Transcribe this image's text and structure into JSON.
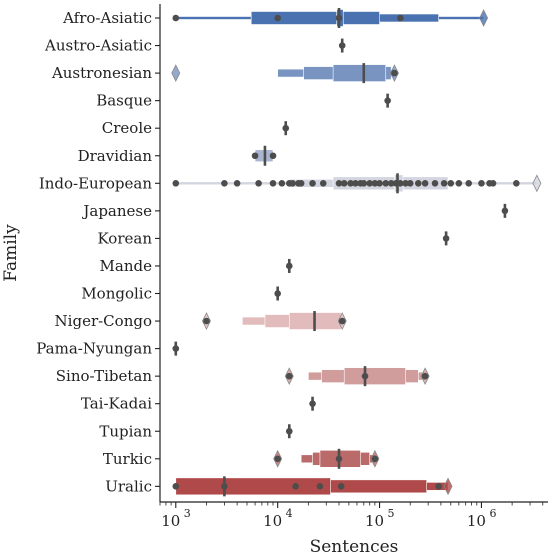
{
  "chart_data": {
    "type": "boxen",
    "xlabel": "Sentences",
    "ylabel": "Family",
    "x_scale": "log",
    "xlim": [
      700,
      4500000
    ],
    "x_ticks": [
      {
        "value": 1000,
        "label": "10^3",
        "base": "10",
        "exp": "3"
      },
      {
        "value": 10000,
        "label": "10^4",
        "base": "10",
        "exp": "4"
      },
      {
        "value": 100000,
        "label": "10^5",
        "base": "10",
        "exp": "5"
      },
      {
        "value": 1000000,
        "label": "10^6",
        "base": "10",
        "exp": "6"
      }
    ],
    "categories": [
      "Afro-Asiatic",
      "Austro-Asiatic",
      "Austronesian",
      "Basque",
      "Creole",
      "Dravidian",
      "Indo-European",
      "Japanese",
      "Korean",
      "Mande",
      "Mongolic",
      "Niger-Congo",
      "Pama-Nyungan",
      "Sino-Tibetan",
      "Tai-Kadai",
      "Tupian",
      "Turkic",
      "Uralic"
    ],
    "colors": {
      "Afro-Asiatic": "#4a72b0",
      "Austro-Asiatic": "#5879b0",
      "Austronesian": "#7a94c2",
      "Basque": "#8aa0c8",
      "Creole": "#9aaccd",
      "Dravidian": "#aab5d0",
      "Indo-European": "#d3d6e0",
      "Japanese": "#d9d9df",
      "Korean": "#dcdcdc",
      "Mande": "#dcd4d4",
      "Mongolic": "#dccaca",
      "Niger-Congo": "#e2bcbc",
      "Pama-Nyungan": "#dcb0b0",
      "Sino-Tibetan": "#d19c9c",
      "Tai-Kadai": "#c98c8c",
      "Tupian": "#c48282",
      "Turkic": "#bb6a6a",
      "Uralic": "#b04a4a",
      "point": "#4d4d4d",
      "axis": "#222222"
    },
    "series": [
      {
        "family": "Afro-Asiatic",
        "boxes": [
          [
            1000,
            1050000
          ],
          [
            5500,
            380000
          ],
          [
            5500,
            100000
          ],
          [
            38000,
            44000
          ]
        ],
        "median": 40000,
        "points": [
          1000,
          10000,
          40000,
          160000
        ],
        "outliers": [
          1050000
        ]
      },
      {
        "family": "Austro-Asiatic",
        "boxes": [],
        "median": 43000,
        "points": [
          43000
        ],
        "outliers": []
      },
      {
        "family": "Austronesian",
        "boxes": [
          [
            10000,
            140000
          ],
          [
            18000,
            130000
          ],
          [
            35000,
            115000
          ]
        ],
        "median": 70000,
        "points": [
          140000
        ],
        "outliers": [
          1000,
          140000
        ]
      },
      {
        "family": "Basque",
        "boxes": [],
        "median": 120000,
        "points": [
          120000
        ],
        "outliers": []
      },
      {
        "family": "Creole",
        "boxes": [],
        "median": 12000,
        "points": [
          12000
        ],
        "outliers": []
      },
      {
        "family": "Dravidian",
        "boxes": [
          [
            6000,
            9000
          ]
        ],
        "median": 7500,
        "points": [
          6000,
          9000
        ],
        "outliers": []
      },
      {
        "family": "Indo-European",
        "boxes": [
          [
            1000,
            3500000
          ],
          [
            13000,
            470000
          ],
          [
            35000,
            470000
          ],
          [
            140000,
            170000
          ]
        ],
        "median": 150000,
        "points": [
          1000,
          3000,
          4000,
          6500,
          9000,
          11000,
          13000,
          14000,
          16000,
          17000,
          22000,
          28000,
          40000,
          45000,
          52000,
          58000,
          65000,
          70000,
          80000,
          90000,
          100000,
          115000,
          130000,
          145000,
          160000,
          180000,
          200000,
          240000,
          280000,
          350000,
          430000,
          500000,
          600000,
          750000,
          1000000,
          1200000,
          1300000,
          2200000
        ],
        "outliers": [
          3500000
        ]
      },
      {
        "family": "Japanese",
        "boxes": [],
        "median": 1700000,
        "points": [
          1700000
        ],
        "outliers": []
      },
      {
        "family": "Korean",
        "boxes": [],
        "median": 450000,
        "points": [
          450000
        ],
        "outliers": []
      },
      {
        "family": "Mande",
        "boxes": [],
        "median": 13000,
        "points": [
          13000
        ],
        "outliers": []
      },
      {
        "family": "Mongolic",
        "boxes": [],
        "median": 10000,
        "points": [
          10000
        ],
        "outliers": []
      },
      {
        "family": "Niger-Congo",
        "boxes": [
          [
            4500,
            45000
          ],
          [
            7500,
            42000
          ],
          [
            13000,
            42000
          ]
        ],
        "median": 23000,
        "points": [
          2000,
          43000
        ],
        "outliers": [
          2000,
          43000
        ]
      },
      {
        "family": "Pama-Nyungan",
        "boxes": [],
        "median": 1000,
        "points": [
          1000
        ],
        "outliers": []
      },
      {
        "family": "Sino-Tibetan",
        "boxes": [
          [
            20000,
            280000
          ],
          [
            27000,
            240000
          ],
          [
            45000,
            180000
          ]
        ],
        "median": 72000,
        "points": [
          13000,
          72000,
          280000
        ],
        "outliers": [
          13000,
          280000
        ]
      },
      {
        "family": "Tai-Kadai",
        "boxes": [],
        "median": 22000,
        "points": [
          22000
        ],
        "outliers": []
      },
      {
        "family": "Tupian",
        "boxes": [],
        "median": 13000,
        "points": [
          13000
        ],
        "outliers": []
      },
      {
        "family": "Turkic",
        "boxes": [
          [
            17000,
            90000
          ],
          [
            22000,
            80000
          ],
          [
            26000,
            65000
          ]
        ],
        "median": 40000,
        "points": [
          10000,
          40000,
          90000
        ],
        "outliers": [
          10000,
          90000
        ]
      },
      {
        "family": "Uralic",
        "boxes": [
          [
            1000,
            470000
          ],
          [
            1000,
            290000
          ],
          [
            1000,
            33000
          ]
        ],
        "median": 3000,
        "points": [
          1000,
          3000,
          15000,
          26000,
          42000,
          380000
        ],
        "outliers": [
          470000
        ]
      }
    ]
  }
}
